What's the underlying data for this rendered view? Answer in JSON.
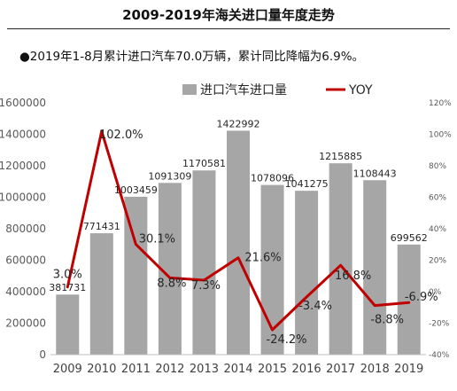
{
  "header": {
    "title": "2009-2019年海关进口量年度走势",
    "note": "●2019年1-8月累计进口汽车70.0万辆，累计同比降幅为6.9%。"
  },
  "chart_data": {
    "type": "bar+line",
    "categories": [
      "2009",
      "2010",
      "2011",
      "2012",
      "2013",
      "2014",
      "2015",
      "2016",
      "2017",
      "2018",
      "2019"
    ],
    "series": [
      {
        "name": "进口汽车进口量",
        "type": "bar",
        "axis": "left",
        "color": "#a6a6a6",
        "values": [
          381731,
          771431,
          1003459,
          1091309,
          1170581,
          1422992,
          1078096,
          1041275,
          1215885,
          1108443,
          699562
        ],
        "labels": [
          "381731",
          "771431",
          "1003459",
          "1091309",
          "1170581",
          "1422992",
          "1078096",
          "1041275",
          "1215885",
          "1108443",
          "699562"
        ]
      },
      {
        "name": "YOY",
        "type": "line",
        "axis": "right",
        "color": "#c00000",
        "values": [
          3.0,
          102.0,
          30.1,
          8.8,
          7.3,
          21.6,
          -24.2,
          -3.4,
          16.8,
          -8.8,
          -6.9
        ],
        "labels": [
          "3.0%",
          "102.0%",
          "30.1%",
          "8.8%",
          "7.3%",
          "21.6%",
          "-24.2%",
          "-3.4%",
          "16.8%",
          "-8.8%",
          "-6.9%"
        ]
      }
    ],
    "y_left": {
      "range": [
        0,
        1600000
      ],
      "ticks": [
        0,
        200000,
        400000,
        600000,
        800000,
        1000000,
        1200000,
        1400000,
        1600000
      ],
      "tick_labels": [
        "0",
        "200000",
        "400000",
        "600000",
        "800000",
        "1000000",
        "1200000",
        "1400000",
        "1600000"
      ]
    },
    "y_right": {
      "range": [
        -40,
        120
      ],
      "ticks": [
        -40,
        -20,
        0,
        20,
        40,
        60,
        80,
        100,
        120
      ],
      "tick_labels": [
        "-40%",
        "-20%",
        "0%",
        "20%",
        "40%",
        "60%",
        "80%",
        "100%",
        "120%"
      ]
    },
    "legend": {
      "placement": "top-center"
    },
    "grid": false
  }
}
